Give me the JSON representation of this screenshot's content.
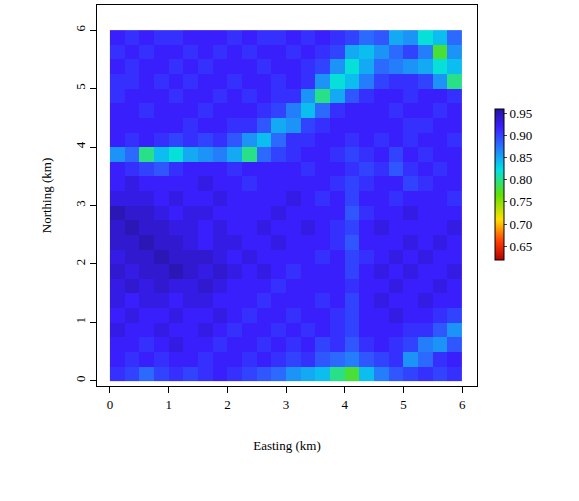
{
  "chart_data": {
    "type": "heatmap",
    "xlabel": "Easting (km)",
    "ylabel": "Northing (km)",
    "xlim": [
      -0.22,
      6.25
    ],
    "ylim": [
      -0.09,
      6.43
    ],
    "xticks": [
      0,
      1,
      2,
      3,
      4,
      5,
      6
    ],
    "yticks": [
      0,
      1,
      2,
      3,
      4,
      5,
      6
    ],
    "x": [
      0.125,
      0.375,
      0.625,
      0.875,
      1.125,
      1.375,
      1.625,
      1.875,
      2.125,
      2.375,
      2.625,
      2.875,
      3.125,
      3.375,
      3.625,
      3.875,
      4.125,
      4.375,
      4.625,
      4.875,
      5.125,
      5.375,
      5.625,
      5.875
    ],
    "y": [
      0.125,
      0.375,
      0.625,
      0.875,
      1.125,
      1.375,
      1.625,
      1.875,
      2.125,
      2.375,
      2.625,
      2.875,
      3.125,
      3.375,
      3.625,
      3.875,
      4.125,
      4.375,
      4.625,
      4.875,
      5.125,
      5.375,
      5.625,
      5.875
    ],
    "z": [
      [
        0.91,
        0.9,
        0.88,
        0.9,
        0.91,
        0.9,
        0.91,
        0.92,
        0.91,
        0.9,
        0.89,
        0.88,
        0.86,
        0.85,
        0.84,
        0.8,
        0.78,
        0.84,
        0.87,
        0.89,
        0.9,
        0.91,
        0.9,
        0.91
      ],
      [
        0.92,
        0.91,
        0.92,
        0.91,
        0.92,
        0.92,
        0.91,
        0.92,
        0.92,
        0.91,
        0.92,
        0.91,
        0.9,
        0.91,
        0.89,
        0.88,
        0.87,
        0.89,
        0.9,
        0.91,
        0.86,
        0.88,
        0.91,
        0.92
      ],
      [
        0.92,
        0.92,
        0.91,
        0.92,
        0.93,
        0.92,
        0.92,
        0.91,
        0.92,
        0.92,
        0.91,
        0.92,
        0.91,
        0.92,
        0.9,
        0.91,
        0.89,
        0.91,
        0.92,
        0.91,
        0.9,
        0.87,
        0.86,
        0.89
      ],
      [
        0.93,
        0.92,
        0.92,
        0.93,
        0.92,
        0.92,
        0.93,
        0.92,
        0.91,
        0.92,
        0.92,
        0.91,
        0.92,
        0.91,
        0.92,
        0.91,
        0.9,
        0.92,
        0.92,
        0.92,
        0.91,
        0.91,
        0.89,
        0.86
      ],
      [
        0.92,
        0.93,
        0.92,
        0.92,
        0.93,
        0.92,
        0.92,
        0.93,
        0.92,
        0.91,
        0.92,
        0.92,
        0.91,
        0.92,
        0.92,
        0.91,
        0.9,
        0.92,
        0.92,
        0.93,
        0.92,
        0.92,
        0.91,
        0.9
      ],
      [
        0.93,
        0.92,
        0.93,
        0.93,
        0.92,
        0.93,
        0.93,
        0.92,
        0.92,
        0.92,
        0.91,
        0.92,
        0.92,
        0.92,
        0.91,
        0.92,
        0.9,
        0.92,
        0.93,
        0.92,
        0.92,
        0.93,
        0.92,
        0.92
      ],
      [
        0.93,
        0.94,
        0.93,
        0.94,
        0.93,
        0.93,
        0.94,
        0.93,
        0.92,
        0.92,
        0.92,
        0.91,
        0.92,
        0.92,
        0.92,
        0.92,
        0.91,
        0.92,
        0.92,
        0.93,
        0.92,
        0.92,
        0.93,
        0.92
      ],
      [
        0.94,
        0.93,
        0.94,
        0.94,
        0.95,
        0.94,
        0.93,
        0.94,
        0.93,
        0.92,
        0.93,
        0.92,
        0.91,
        0.92,
        0.92,
        0.92,
        0.9,
        0.92,
        0.93,
        0.92,
        0.93,
        0.92,
        0.92,
        0.93
      ],
      [
        0.93,
        0.94,
        0.94,
        0.95,
        0.94,
        0.94,
        0.94,
        0.93,
        0.92,
        0.93,
        0.92,
        0.92,
        0.92,
        0.92,
        0.91,
        0.92,
        0.9,
        0.91,
        0.92,
        0.93,
        0.92,
        0.93,
        0.92,
        0.92
      ],
      [
        0.94,
        0.94,
        0.95,
        0.94,
        0.94,
        0.93,
        0.92,
        0.93,
        0.93,
        0.92,
        0.92,
        0.93,
        0.92,
        0.92,
        0.92,
        0.91,
        0.89,
        0.92,
        0.92,
        0.92,
        0.93,
        0.92,
        0.93,
        0.92
      ],
      [
        0.94,
        0.95,
        0.94,
        0.94,
        0.93,
        0.93,
        0.92,
        0.93,
        0.92,
        0.92,
        0.93,
        0.92,
        0.92,
        0.93,
        0.92,
        0.91,
        0.9,
        0.92,
        0.93,
        0.92,
        0.92,
        0.92,
        0.92,
        0.93
      ],
      [
        0.95,
        0.94,
        0.94,
        0.93,
        0.92,
        0.93,
        0.93,
        0.92,
        0.92,
        0.92,
        0.92,
        0.93,
        0.92,
        0.92,
        0.92,
        0.92,
        0.89,
        0.91,
        0.92,
        0.92,
        0.93,
        0.92,
        0.92,
        0.92
      ],
      [
        0.93,
        0.93,
        0.93,
        0.92,
        0.93,
        0.92,
        0.92,
        0.93,
        0.92,
        0.92,
        0.92,
        0.92,
        0.93,
        0.92,
        0.91,
        0.92,
        0.9,
        0.92,
        0.92,
        0.91,
        0.92,
        0.92,
        0.92,
        0.91
      ],
      [
        0.92,
        0.93,
        0.92,
        0.92,
        0.92,
        0.92,
        0.93,
        0.92,
        0.92,
        0.91,
        0.92,
        0.92,
        0.92,
        0.92,
        0.92,
        0.91,
        0.9,
        0.91,
        0.92,
        0.92,
        0.9,
        0.91,
        0.92,
        0.92
      ],
      [
        0.92,
        0.91,
        0.9,
        0.89,
        0.91,
        0.92,
        0.92,
        0.92,
        0.91,
        0.92,
        0.92,
        0.92,
        0.92,
        0.91,
        0.92,
        0.92,
        0.91,
        0.9,
        0.91,
        0.89,
        0.91,
        0.92,
        0.91,
        0.92
      ],
      [
        0.86,
        0.88,
        0.8,
        0.84,
        0.82,
        0.85,
        0.86,
        0.87,
        0.85,
        0.8,
        0.88,
        0.9,
        0.91,
        0.92,
        0.92,
        0.91,
        0.9,
        0.91,
        0.92,
        0.9,
        0.92,
        0.91,
        0.92,
        0.92
      ],
      [
        0.92,
        0.91,
        0.92,
        0.91,
        0.9,
        0.91,
        0.9,
        0.91,
        0.89,
        0.86,
        0.84,
        0.88,
        0.91,
        0.91,
        0.92,
        0.92,
        0.91,
        0.92,
        0.91,
        0.92,
        0.91,
        0.92,
        0.92,
        0.91
      ],
      [
        0.92,
        0.92,
        0.92,
        0.92,
        0.92,
        0.91,
        0.92,
        0.92,
        0.91,
        0.91,
        0.89,
        0.85,
        0.86,
        0.9,
        0.91,
        0.92,
        0.92,
        0.92,
        0.92,
        0.92,
        0.91,
        0.91,
        0.92,
        0.92
      ],
      [
        0.92,
        0.92,
        0.91,
        0.92,
        0.92,
        0.92,
        0.91,
        0.92,
        0.92,
        0.92,
        0.91,
        0.9,
        0.87,
        0.84,
        0.88,
        0.91,
        0.92,
        0.92,
        0.92,
        0.91,
        0.92,
        0.92,
        0.91,
        0.92
      ],
      [
        0.91,
        0.92,
        0.92,
        0.92,
        0.91,
        0.92,
        0.92,
        0.91,
        0.92,
        0.91,
        0.92,
        0.91,
        0.91,
        0.86,
        0.8,
        0.85,
        0.89,
        0.91,
        0.92,
        0.92,
        0.91,
        0.92,
        0.92,
        0.91
      ],
      [
        0.91,
        0.91,
        0.92,
        0.91,
        0.92,
        0.91,
        0.92,
        0.92,
        0.91,
        0.92,
        0.92,
        0.91,
        0.92,
        0.91,
        0.86,
        0.82,
        0.84,
        0.87,
        0.9,
        0.91,
        0.91,
        0.9,
        0.86,
        0.8
      ],
      [
        0.92,
        0.91,
        0.92,
        0.92,
        0.91,
        0.92,
        0.91,
        0.92,
        0.92,
        0.92,
        0.91,
        0.92,
        0.92,
        0.91,
        0.9,
        0.86,
        0.82,
        0.85,
        0.88,
        0.87,
        0.86,
        0.85,
        0.82,
        0.84
      ],
      [
        0.91,
        0.92,
        0.91,
        0.92,
        0.92,
        0.91,
        0.92,
        0.91,
        0.92,
        0.91,
        0.92,
        0.92,
        0.91,
        0.92,
        0.91,
        0.9,
        0.85,
        0.84,
        0.86,
        0.88,
        0.9,
        0.87,
        0.78,
        0.86
      ],
      [
        0.92,
        0.91,
        0.92,
        0.91,
        0.91,
        0.92,
        0.92,
        0.92,
        0.91,
        0.92,
        0.91,
        0.91,
        0.92,
        0.91,
        0.92,
        0.91,
        0.9,
        0.88,
        0.89,
        0.85,
        0.86,
        0.82,
        0.84,
        0.88
      ]
    ],
    "colorbar": {
      "range": [
        0.62,
        0.96
      ],
      "ticks": [
        0.65,
        0.7,
        0.75,
        0.8,
        0.85,
        0.9,
        0.95
      ]
    }
  }
}
